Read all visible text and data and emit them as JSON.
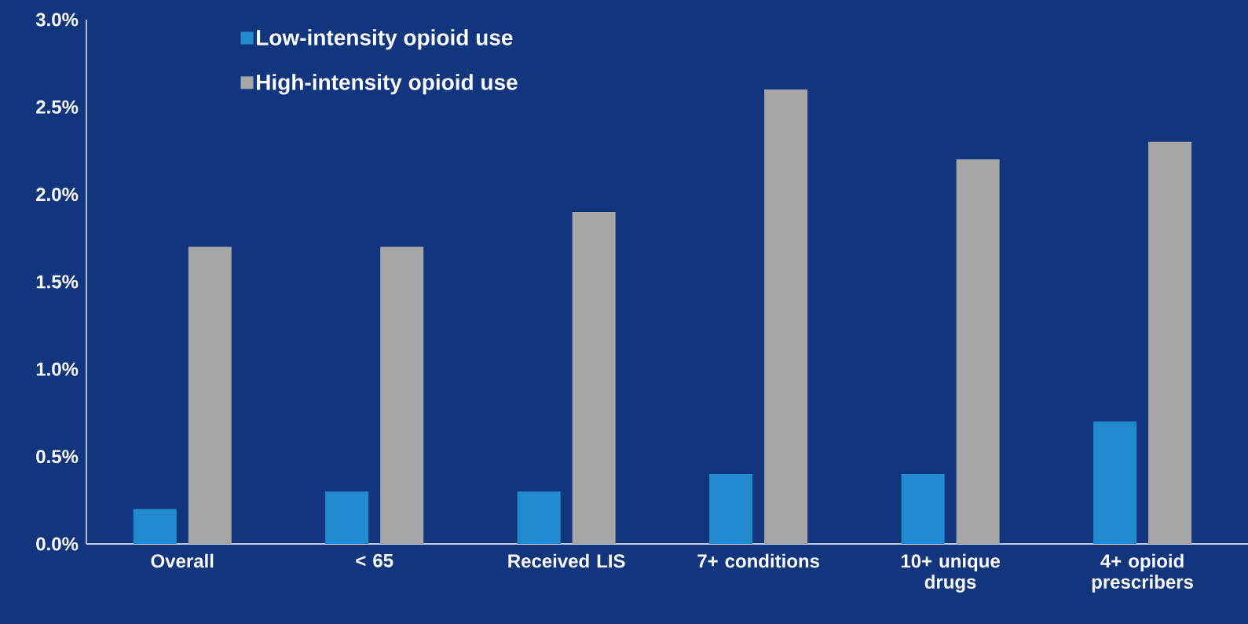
{
  "chart_data": {
    "type": "bar",
    "categories": [
      "Overall",
      "< 65",
      "Received LIS",
      "7+ conditions",
      "10+ unique drugs",
      "4+ opioid prescribers"
    ],
    "series": [
      {
        "name": "Low-intensity opioid use",
        "color": "#228bd0",
        "values": [
          0.2,
          0.3,
          0.3,
          0.4,
          0.4,
          0.7
        ]
      },
      {
        "name": "High-intensity opioid use",
        "color": "#a6a6a6",
        "values": [
          1.7,
          1.7,
          1.9,
          2.6,
          2.2,
          2.3
        ]
      }
    ],
    "ylim": [
      0,
      3.0
    ],
    "yticks": [
      {
        "value": 0,
        "label": "0.0%"
      },
      {
        "value": 0.5,
        "label": "0.5%"
      },
      {
        "value": 1.0,
        "label": "1.0%"
      },
      {
        "value": 1.5,
        "label": "1.5%"
      },
      {
        "value": 2.0,
        "label": "2.0%"
      },
      {
        "value": 2.5,
        "label": "2.5%"
      },
      {
        "value": 3.0,
        "label": "3.0%"
      }
    ],
    "grid": false,
    "legend": "top left"
  }
}
